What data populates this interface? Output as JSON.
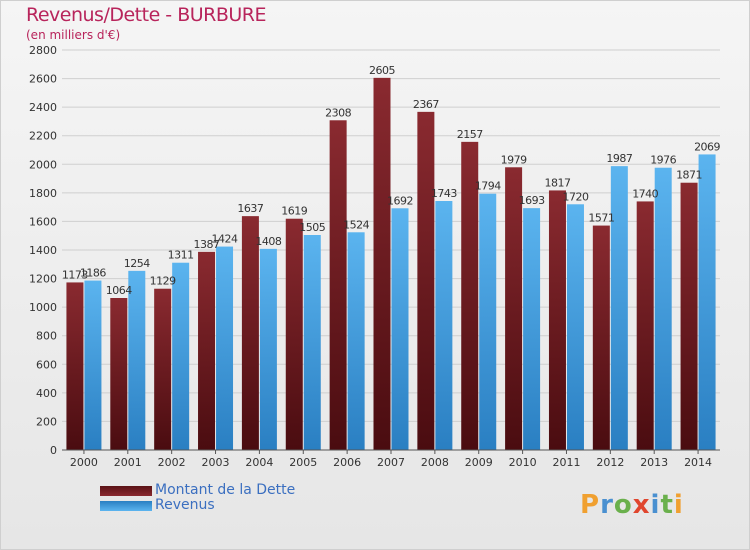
{
  "header": {
    "title": "Revenus/Dette - BURBURE",
    "subtitle": "(en milliers d'€)"
  },
  "colors": {
    "dette": "#7a1e24",
    "revenus": "#3f9ee0",
    "grid": "#cfcfcf",
    "axis_text": "#333333"
  },
  "chart_data": {
    "type": "bar",
    "title": "Revenus/Dette - BURBURE",
    "subtitle": "(en milliers d'€)",
    "categories": [
      "2000",
      "2001",
      "2002",
      "2003",
      "2004",
      "2005",
      "2006",
      "2007",
      "2008",
      "2009",
      "2010",
      "2011",
      "2012",
      "2013",
      "2014"
    ],
    "series": [
      {
        "name": "Montant de la Dette",
        "values": [
          1173,
          1064,
          1129,
          1387,
          1637,
          1619,
          2308,
          2605,
          2367,
          2157,
          1979,
          1817,
          1571,
          1740,
          1871
        ]
      },
      {
        "name": "Revenus",
        "values": [
          1186,
          1254,
          1311,
          1424,
          1408,
          1505,
          1524,
          1692,
          1743,
          1794,
          1693,
          1720,
          1987,
          1976,
          2069
        ]
      }
    ],
    "value_labels": {
      "Montant de la Dette": [
        "1173",
        "1064",
        "1129",
        "1387",
        "1637",
        "1619",
        "2308",
        "2605",
        "2367",
        "2157",
        "1979",
        "1817",
        "1571",
        "1740",
        "1871"
      ],
      "Revenus": [
        "1186",
        "1254",
        "1311",
        "1424",
        "1408",
        "1505",
        "1524",
        "1692",
        "1743",
        "1794",
        "1693",
        "1720",
        "1987",
        "1976",
        "2069"
      ]
    },
    "ylim": [
      0,
      2800
    ],
    "yticks": [
      "0",
      "200",
      "400",
      "600",
      "800",
      "1000",
      "1200",
      "1400",
      "1600",
      "1800",
      "2000",
      "2200",
      "2400",
      "2600",
      "2800"
    ],
    "grid": true,
    "legend_position": "bottom-left"
  },
  "legend": {
    "items": [
      {
        "label": "Montant de la Dette"
      },
      {
        "label": "Revenus"
      }
    ]
  },
  "logo": {
    "letters": [
      "P",
      "r",
      "o",
      "x",
      "i",
      "t",
      "i"
    ],
    "colors": [
      "#f0a030",
      "#4a90d0",
      "#6ab04c",
      "#e0462e",
      "#4a90d0",
      "#6ab04c",
      "#f0a030"
    ]
  }
}
